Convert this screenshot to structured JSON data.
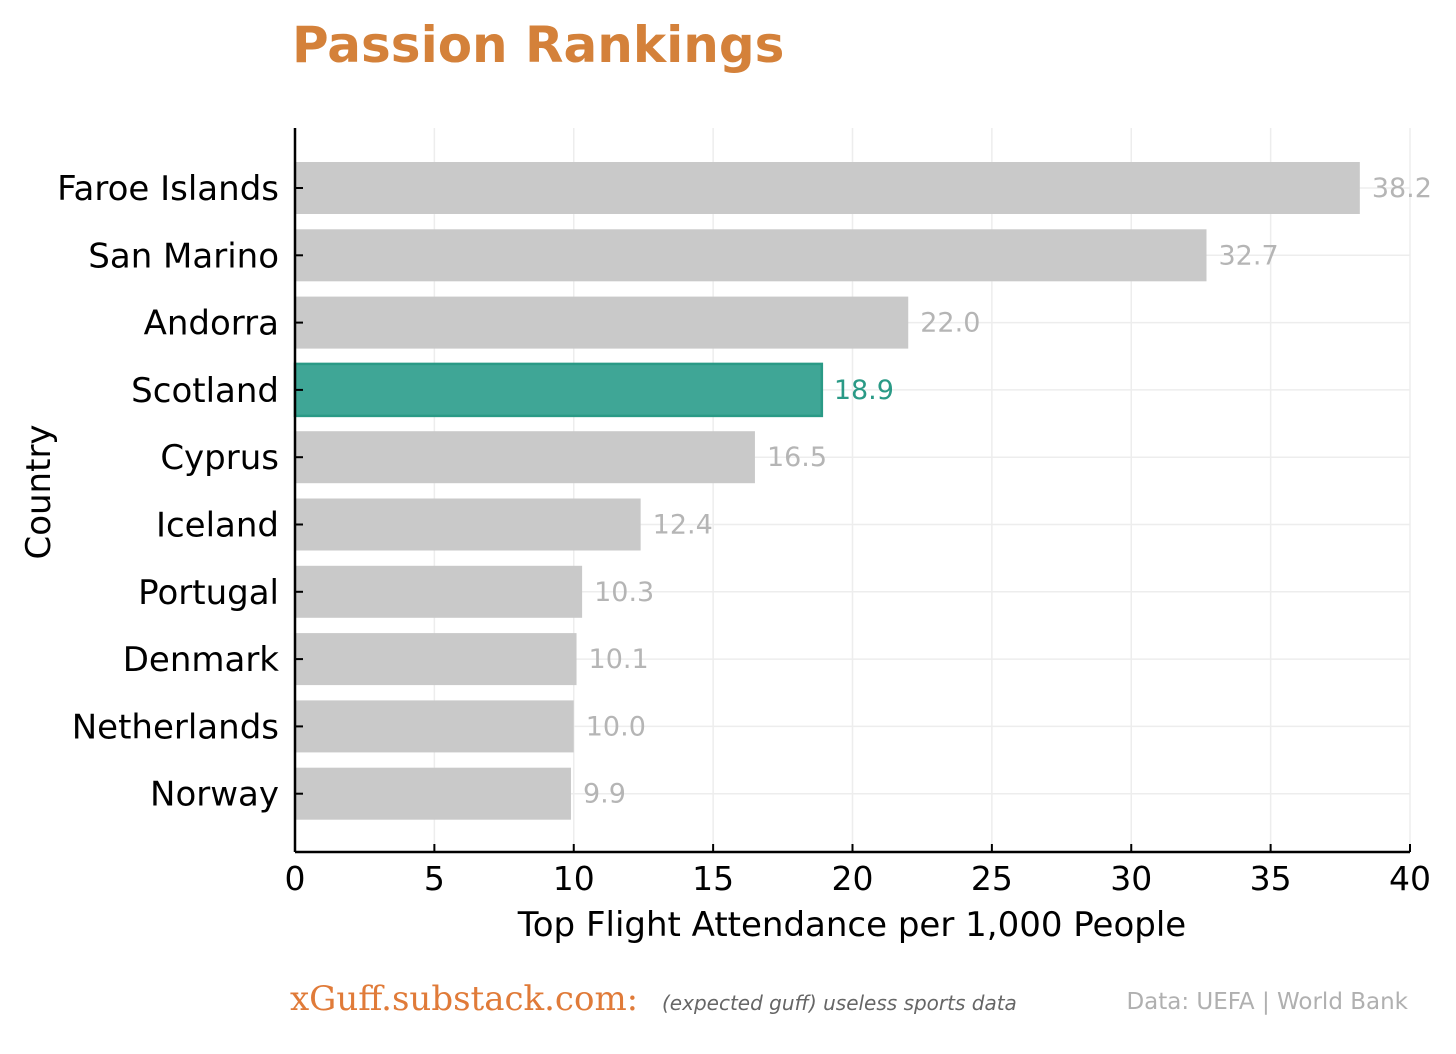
{
  "chart_data": {
    "type": "bar",
    "orientation": "horizontal",
    "title": "Passion Rankings",
    "xlabel": "Top Flight Attendance per 1,000 People",
    "ylabel": "Country",
    "xlim": [
      0,
      40
    ],
    "xticks": [
      0,
      5,
      10,
      15,
      20,
      25,
      30,
      35,
      40
    ],
    "grid": true,
    "categories": [
      "Faroe Islands",
      "San Marino",
      "Andorra",
      "Scotland",
      "Cyprus",
      "Iceland",
      "Portugal",
      "Denmark",
      "Netherlands",
      "Norway"
    ],
    "values": [
      38.2,
      32.7,
      22.0,
      18.9,
      16.5,
      12.4,
      10.3,
      10.1,
      10.0,
      9.9
    ],
    "value_labels": [
      "38.2",
      "32.7",
      "22.0",
      "18.9",
      "16.5",
      "12.4",
      "10.3",
      "10.1",
      "10.0",
      "9.9"
    ],
    "highlight": "Scotland",
    "colors": {
      "title": "#d4813a",
      "bar": "#c9c9c9",
      "value_label": "#b5b5b5",
      "highlight_bar": "#3fa696",
      "highlight_edge": "#2a9a86",
      "highlight_label": "#2a9a86",
      "axis": "#000000",
      "grid": "#ededed"
    }
  },
  "footer": {
    "brand": "xGuff.substack.com:",
    "tagline": "(expected guff) useless sports data",
    "source": "Data: UEFA | World Bank",
    "brand_color": "#e07b39",
    "tagline_color": "#666666",
    "source_color": "#b0b0b0"
  }
}
